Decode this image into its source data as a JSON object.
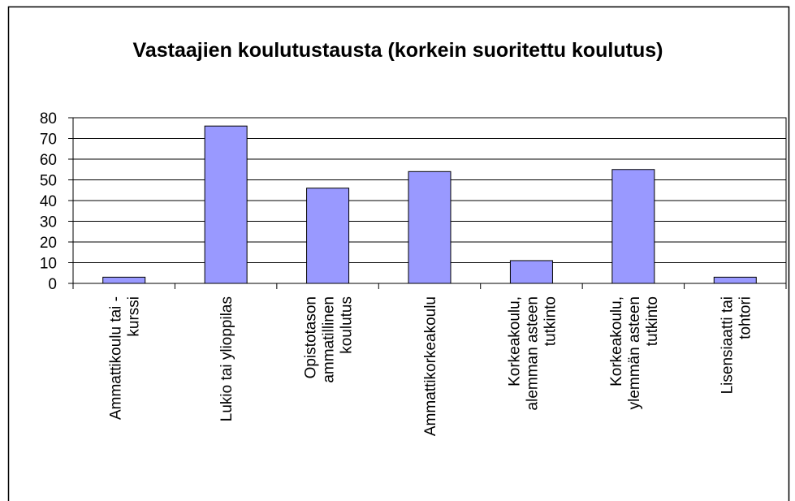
{
  "chart_data": {
    "type": "bar",
    "title": "Vastaajien koulutustausta (korkein suoritettu koulutus)",
    "categories": [
      [
        "Ammattikoulu tai -",
        "kurssi"
      ],
      [
        "Lukio tai ylioppilas"
      ],
      [
        "Opistotason",
        "ammatillinen",
        "koulutus"
      ],
      [
        "Ammattikorkeakoulu"
      ],
      [
        "Korkeakoulu,",
        "alemman asteen",
        "tutkinto"
      ],
      [
        "Korkeakoulu,",
        "ylemmän asteen",
        "tutkinto"
      ],
      [
        "Lisensiaatti tai",
        "tohtori"
      ]
    ],
    "values": [
      3,
      76,
      46,
      54,
      11,
      55,
      3
    ],
    "color": "#9999ff",
    "ylim": [
      0,
      80
    ],
    "yticks": [
      0,
      10,
      20,
      30,
      40,
      50,
      60,
      70,
      80
    ],
    "grid": true
  }
}
